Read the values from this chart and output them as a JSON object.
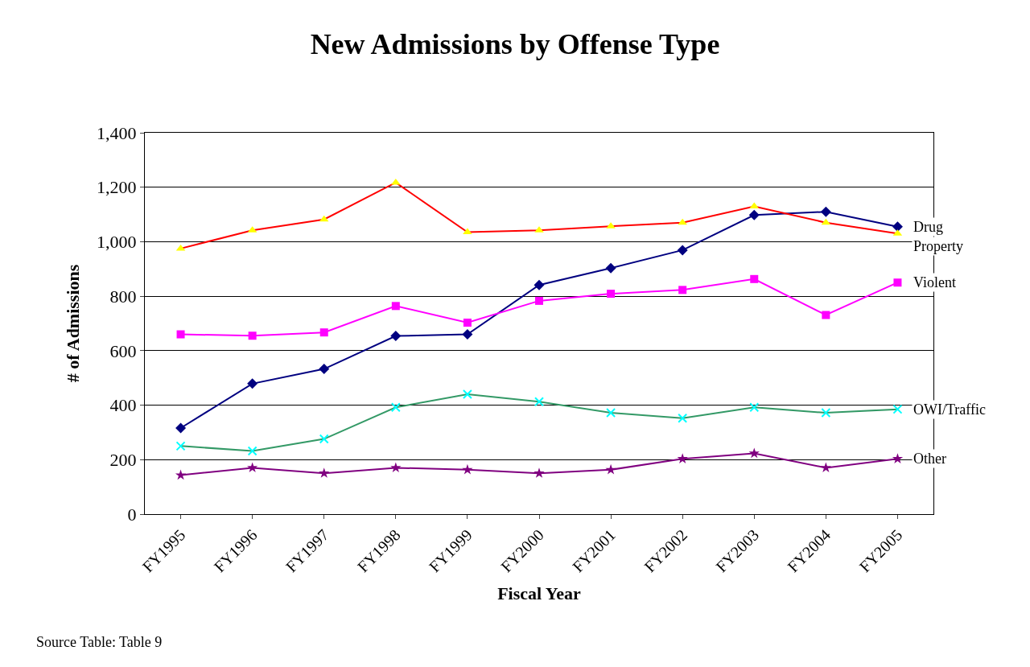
{
  "chart_data": {
    "type": "line",
    "title": "New Admissions by Offense Type",
    "xlabel": "Fiscal Year",
    "ylabel": "# of Admissions",
    "categories": [
      "FY1995",
      "FY1996",
      "FY1997",
      "FY1998",
      "FY1999",
      "FY2000",
      "FY2001",
      "FY2002",
      "FY2003",
      "FY2004",
      "FY2005"
    ],
    "series": [
      {
        "name": "Drug",
        "color": "#000080",
        "marker": "diamond",
        "values": [
          316,
          479,
          533,
          654,
          660,
          841,
          903,
          969,
          1098,
          1110,
          1055
        ]
      },
      {
        "name": "Property",
        "color": "#ff0000",
        "marker": "triangle",
        "colors": [
          "#ffff00",
          "#ffff00",
          "#ffff00",
          "#ffff00",
          "#ffff00",
          "#ffff00",
          "#ffff00",
          "#ffff00",
          "#ffff00",
          "#ffff00",
          "#ffff00"
        ],
        "values": [
          975,
          1042,
          1082,
          1217,
          1035,
          1042,
          1057,
          1070,
          1130,
          1070,
          1030
        ]
      },
      {
        "name": "Violent",
        "color": "#ff00ff",
        "marker": "square",
        "values": [
          660,
          655,
          667,
          764,
          703,
          783,
          809,
          823,
          863,
          731,
          850
        ]
      },
      {
        "name": "OWI/Traffic",
        "color": "#339966",
        "marker": "cross",
        "colors": [
          "#00ffff",
          "#00ffff",
          "#00ffff",
          "#00ffff",
          "#00ffff",
          "#00ffff",
          "#00ffff",
          "#00ffff",
          "#00ffff",
          "#00ffff",
          "#00ffff"
        ],
        "values": [
          250,
          232,
          276,
          392,
          440,
          413,
          372,
          352,
          392,
          372,
          385
        ]
      },
      {
        "name": "Other",
        "color": "#800080",
        "marker": "star",
        "values": [
          143,
          170,
          150,
          170,
          163,
          150,
          163,
          203,
          223,
          170,
          203
        ]
      }
    ],
    "ylim": [
      0,
      1400
    ],
    "yticks": [
      {
        "value": 0,
        "label": "0"
      },
      {
        "value": 200,
        "label": "200"
      },
      {
        "value": 400,
        "label": "400"
      },
      {
        "value": 600,
        "label": "600"
      },
      {
        "value": 800,
        "label": "800"
      },
      {
        "value": 1000,
        "label": "1,000"
      },
      {
        "value": 1200,
        "label": "1,200"
      },
      {
        "value": 1400,
        "label": "1,400"
      }
    ],
    "grid": "y",
    "legend": false,
    "annotations": [
      "Source Table: Table 9"
    ]
  }
}
